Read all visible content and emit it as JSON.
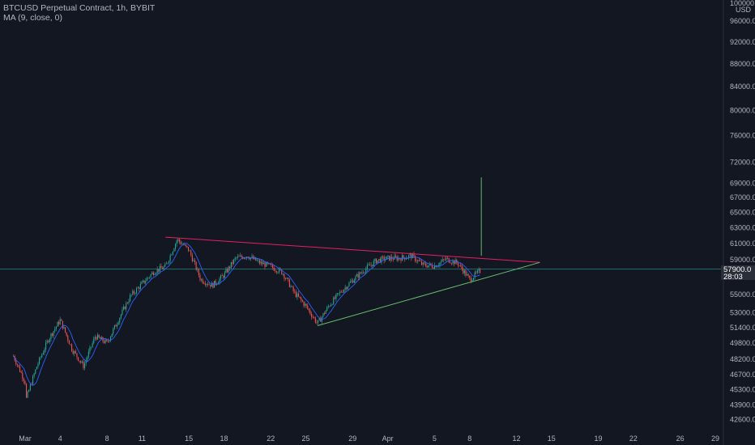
{
  "header": {
    "symbol": "BTCUSD Perpetual Contract, 1h, BYBIT",
    "indicator": "MA (9, close, 0)"
  },
  "colors": {
    "background": "#131722",
    "candle_up": "#26a69a",
    "candle_down": "#ef5350",
    "ma": "#2962ff",
    "upper_trendline": "#e91e63",
    "lower_trendline": "#66bb6a",
    "vertical_marker": "#66bb6a",
    "current_price_line": "#26a69a",
    "axis_text": "#b2b5be"
  },
  "price_axis": {
    "unit_top": "100000.0",
    "currency": "USD",
    "current_price": "57900.0",
    "countdown": "28:03"
  },
  "chart_data": {
    "type": "line",
    "scale": "log",
    "y_ticks": [
      "96000.0",
      "92000.0",
      "88000.0",
      "84000.0",
      "80000.0",
      "76000.0",
      "72000.0",
      "69000.0",
      "67000.0",
      "65000.0",
      "63000.0",
      "61000.0",
      "59000.0",
      "57000.0",
      "55000.0",
      "53000.0",
      "51400.0",
      "49800.0",
      "48200.0",
      "46700.0",
      "45300.0",
      "43900.0",
      "42600.0"
    ],
    "x_ticks": [
      "Mar",
      "4",
      "8",
      "11",
      "15",
      "18",
      "22",
      "25",
      "29",
      "Apr",
      "5",
      "8",
      "12",
      "15",
      "19",
      "22",
      "26",
      "29"
    ],
    "series": [
      {
        "values": [
          [
            "Feb 29",
            48500
          ],
          [
            "Mar 1",
            46000
          ],
          [
            "Mar 1",
            44100
          ],
          [
            "Mar 2",
            47500
          ],
          [
            "Mar 3",
            50200
          ],
          [
            "Mar 4",
            52200
          ],
          [
            "Mar 5",
            49200
          ],
          [
            "Mar 6",
            47500
          ],
          [
            "Mar 7",
            50500
          ],
          [
            "Mar 8",
            49800
          ],
          [
            "Mar 9",
            52300
          ],
          [
            "Mar 10",
            54800
          ],
          [
            "Mar 11",
            56200
          ],
          [
            "Mar 12",
            57600
          ],
          [
            "Mar 13",
            58200
          ],
          [
            "Mar 14",
            61500
          ],
          [
            "Mar 15",
            60200
          ],
          [
            "Mar 16",
            56700
          ],
          [
            "Mar 17",
            56000
          ],
          [
            "Mar 18",
            57200
          ],
          [
            "Mar 19",
            59200
          ],
          [
            "Mar 20",
            59500
          ],
          [
            "Mar 21",
            58700
          ],
          [
            "Mar 22",
            58200
          ],
          [
            "Mar 23",
            57500
          ],
          [
            "Mar 24",
            55200
          ],
          [
            "Mar 25",
            53700
          ],
          [
            "Mar 26",
            51800
          ],
          [
            "Mar 27",
            53800
          ],
          [
            "Mar 28",
            55300
          ],
          [
            "Mar 29",
            56600
          ],
          [
            "Mar 30",
            57800
          ],
          [
            "Mar 31",
            58900
          ],
          [
            "Apr 1",
            59200
          ],
          [
            "Apr 2",
            59200
          ],
          [
            "Apr 3",
            59500
          ],
          [
            "Apr 4",
            58400
          ],
          [
            "Apr 5",
            58300
          ],
          [
            "Apr 6",
            59100
          ],
          [
            "Apr 7",
            58600
          ],
          [
            "Apr 8",
            56700
          ],
          [
            "Apr 9",
            57800
          ]
        ]
      }
    ],
    "trendlines": [
      {
        "from": [
          "Mar 13",
          61800
        ],
        "to": [
          "Apr 14",
          58700
        ]
      },
      {
        "from": [
          "Mar 26",
          51600
        ],
        "to": [
          "Apr 14",
          58700
        ]
      }
    ],
    "vertical_marker": {
      "x": "Apr 9",
      "from": 59500,
      "to": 69800
    },
    "current_price": 57900,
    "grid": false,
    "legend": "top-left"
  }
}
